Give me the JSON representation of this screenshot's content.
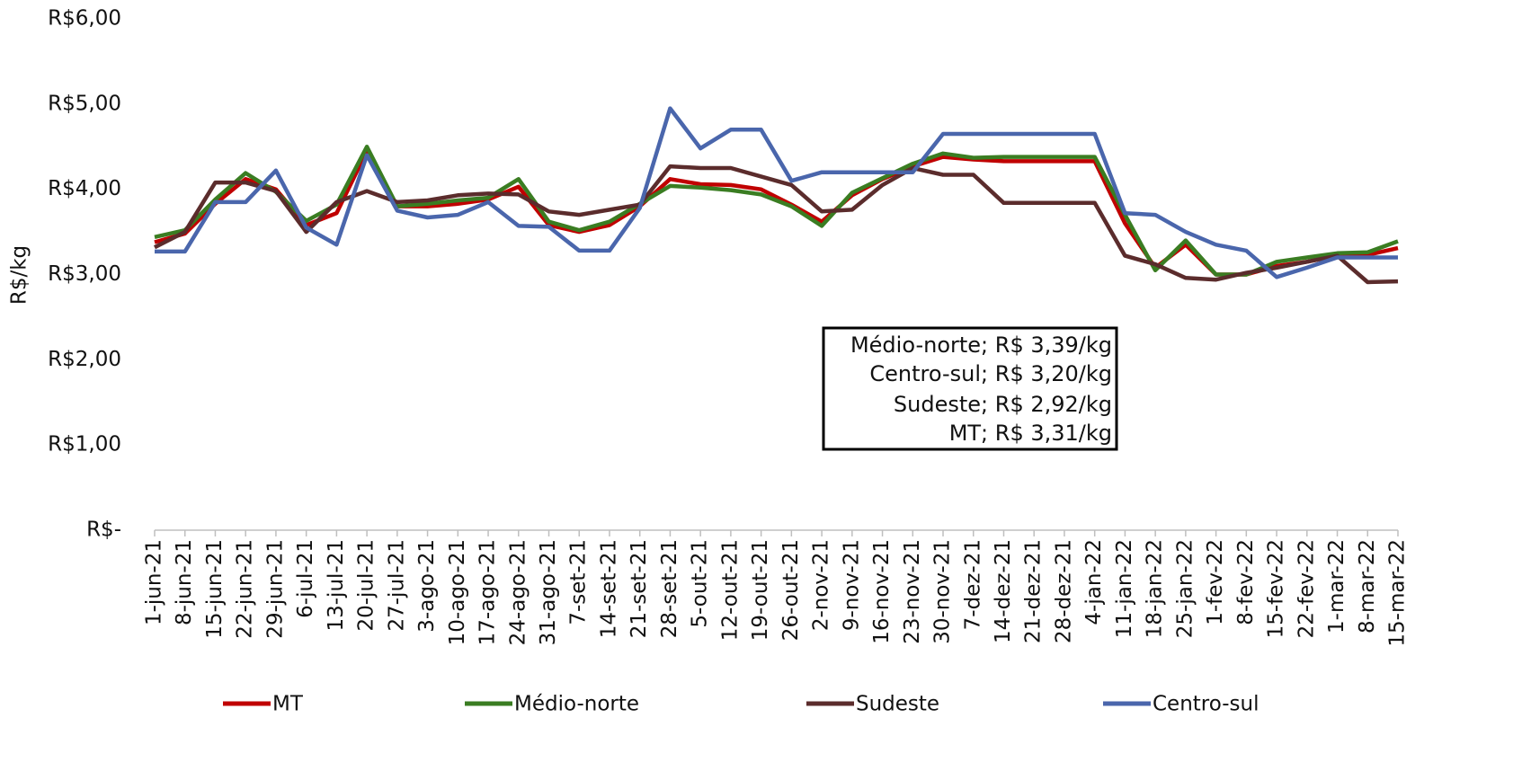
{
  "chart_data": {
    "type": "line",
    "y_label": "R$/kg",
    "categories": [
      "1-jun-21",
      "8-jun-21",
      "15-jun-21",
      "22-jun-21",
      "29-jun-21",
      "6-jul-21",
      "13-jul-21",
      "20-jul-21",
      "27-jul-21",
      "3-ago-21",
      "10-ago-21",
      "17-ago-21",
      "24-ago-21",
      "31-ago-21",
      "7-set-21",
      "14-set-21",
      "21-set-21",
      "28-set-21",
      "5-out-21",
      "12-out-21",
      "19-out-21",
      "26-out-21",
      "2-nov-21",
      "9-nov-21",
      "16-nov-21",
      "23-nov-21",
      "30-nov-21",
      "7-dez-21",
      "14-dez-21",
      "21-dez-21",
      "28-dez-21",
      "4-jan-22",
      "11-jan-22",
      "18-jan-22",
      "25-jan-22",
      "1-fev-22",
      "8-fev-22",
      "15-fev-22",
      "22-fev-22",
      "1-mar-22",
      "8-mar-22",
      "15-mar-22"
    ],
    "series": [
      {
        "name": "MT",
        "color": "#c00000",
        "values": [
          3.38,
          3.48,
          3.83,
          4.12,
          4.0,
          3.58,
          3.72,
          4.45,
          3.8,
          3.8,
          3.83,
          3.88,
          4.03,
          3.58,
          3.5,
          3.58,
          3.8,
          4.12,
          4.06,
          4.05,
          4.0,
          3.82,
          3.62,
          3.93,
          4.12,
          4.27,
          4.38,
          4.35,
          4.33,
          4.33,
          4.33,
          4.33,
          3.6,
          3.08,
          3.35,
          3.0,
          3.0,
          3.1,
          3.15,
          3.22,
          3.23,
          3.31
        ]
      },
      {
        "name": "Médio-norte",
        "color": "#3a7d22",
        "values": [
          3.44,
          3.52,
          3.88,
          4.19,
          3.97,
          3.63,
          3.82,
          4.5,
          3.8,
          3.83,
          3.87,
          3.9,
          4.12,
          3.62,
          3.52,
          3.62,
          3.83,
          4.04,
          4.02,
          3.99,
          3.94,
          3.8,
          3.57,
          3.96,
          4.13,
          4.3,
          4.42,
          4.37,
          4.38,
          4.38,
          4.38,
          4.38,
          3.7,
          3.05,
          3.4,
          3.0,
          3.0,
          3.15,
          3.2,
          3.25,
          3.26,
          3.39
        ]
      },
      {
        "name": "Sudeste",
        "color": "#5b2c2c",
        "values": [
          3.32,
          3.5,
          4.08,
          4.08,
          3.98,
          3.5,
          3.85,
          3.98,
          3.85,
          3.87,
          3.93,
          3.95,
          3.94,
          3.74,
          3.7,
          3.76,
          3.82,
          4.27,
          4.25,
          4.25,
          4.15,
          4.05,
          3.74,
          3.76,
          4.05,
          4.25,
          4.17,
          4.17,
          3.84,
          3.84,
          3.84,
          3.84,
          3.22,
          3.12,
          2.96,
          2.94,
          3.02,
          3.08,
          3.15,
          3.22,
          2.91,
          2.92
        ]
      },
      {
        "name": "Centro-sul",
        "color": "#4a66ac",
        "values": [
          3.27,
          3.27,
          3.85,
          3.85,
          4.22,
          3.55,
          3.35,
          4.4,
          3.75,
          3.67,
          3.7,
          3.85,
          3.57,
          3.56,
          3.28,
          3.28,
          3.78,
          4.95,
          4.48,
          4.7,
          4.7,
          4.1,
          4.2,
          4.2,
          4.2,
          4.2,
          4.65,
          4.65,
          4.65,
          4.65,
          4.65,
          4.65,
          3.72,
          3.7,
          3.5,
          3.35,
          3.28,
          2.97,
          3.08,
          3.2,
          3.2,
          3.2
        ]
      }
    ],
    "ylim": [
      0,
      6
    ],
    "yticks": [
      {
        "value": 0,
        "label": "R$-"
      },
      {
        "value": 1,
        "label": "R$1,00"
      },
      {
        "value": 2,
        "label": "R$2,00"
      },
      {
        "value": 3,
        "label": "R$3,00"
      },
      {
        "value": 4,
        "label": "R$4,00"
      },
      {
        "value": 5,
        "label": "R$5,00"
      },
      {
        "value": 6,
        "label": "R$6,00"
      }
    ],
    "grid": false,
    "annotations": [
      "Médio-norte; R$ 3,39/kg",
      "Centro-sul; R$ 3,20/kg",
      "Sudeste; R$ 2,92/kg",
      "MT; R$ 3,31/kg"
    ]
  }
}
